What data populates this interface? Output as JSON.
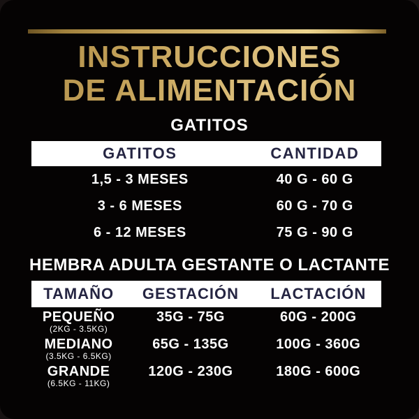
{
  "title": {
    "line1": "INSTRUCCIONES",
    "line2": "DE ALIMENTACIÓN"
  },
  "kittens": {
    "heading": "GATITOS",
    "table": {
      "headers": [
        "GATITOS",
        "CANTIDAD"
      ],
      "rows": [
        [
          "1,5 - 3 MESES",
          "40 G - 60 G"
        ],
        [
          "3 - 6 MESES",
          "60 G - 70 G"
        ],
        [
          "6 - 12 MESES",
          "75 G - 90 G"
        ]
      ]
    }
  },
  "adults": {
    "heading": "HEMBRA ADULTA GESTANTE O LACTANTE",
    "table": {
      "headers": [
        "TAMAÑO",
        "GESTACIÓN",
        "LACTACIÓN"
      ],
      "rows": [
        {
          "size": "PEQUEÑO",
          "weight_range": "(2KG - 3.5KG)",
          "gestacion": "35G - 75G",
          "lactacion": "60G - 200G"
        },
        {
          "size": "MEDIANO",
          "weight_range": "(3.5KG - 6.5KG)",
          "gestacion": "65G - 135G",
          "lactacion": "100G - 360G"
        },
        {
          "size": "GRANDE",
          "weight_range": "(6.5KG - 11KG)",
          "gestacion": "120G - 230G",
          "lactacion": "180G - 600G"
        }
      ]
    }
  },
  "colors": {
    "gold": "#c7a55c",
    "header_text_navy": "#252542",
    "header_bar_bg": "#ffffff",
    "body_text": "#ffffff",
    "background": "#050303"
  },
  "decorations": {
    "top_divider": "gold-gradient-line"
  }
}
